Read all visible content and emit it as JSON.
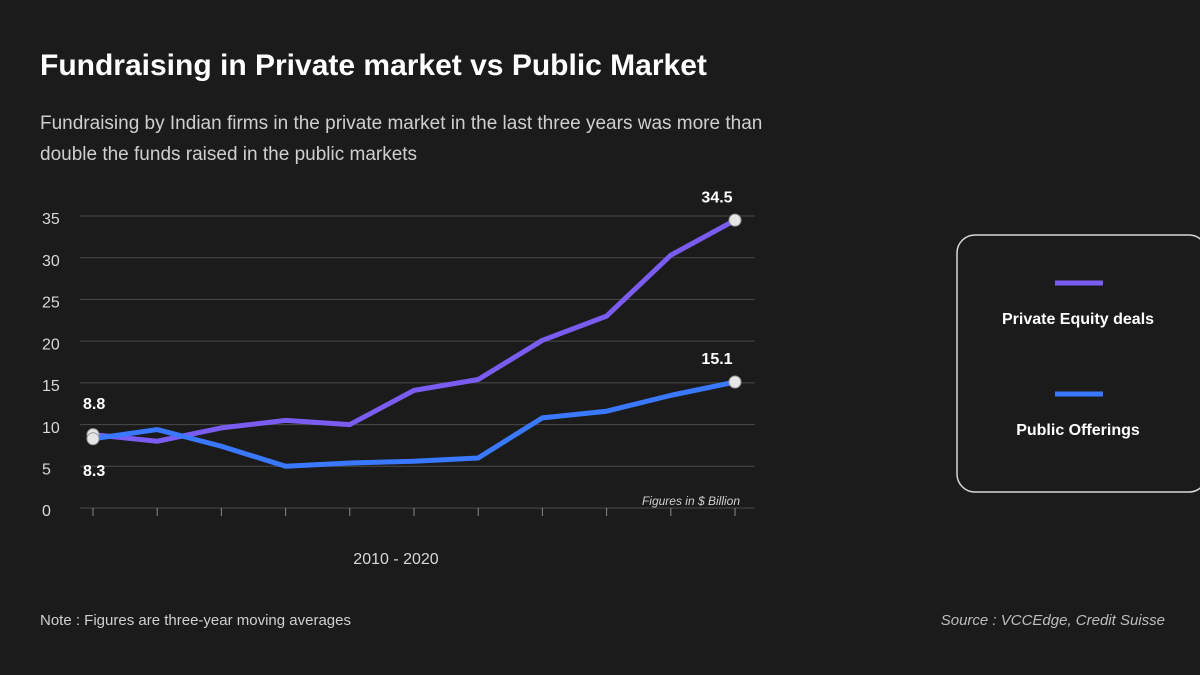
{
  "chart_data": {
    "type": "line",
    "title": "Fundraising in Private market vs Public Market",
    "subtitle": [
      "Fundraising by Indian firms in the private market in the last three years was more than",
      "double the funds raised in the public markets"
    ],
    "x_label": "2010 - 2020",
    "categories": [
      null,
      null,
      null,
      null,
      null,
      null,
      null,
      null,
      null,
      null,
      null
    ],
    "series": [
      {
        "name": "Private Equity deals",
        "color": "#7b5cf0",
        "values": [
          8.8,
          8.0,
          9.6,
          10.5,
          10.0,
          14.1,
          15.4,
          20.1,
          23.0,
          30.3,
          34.5
        ]
      },
      {
        "name": "Public Offerings",
        "color": "#3a78ff",
        "values": [
          8.3,
          9.4,
          7.4,
          5.0,
          5.4,
          5.6,
          6.0,
          10.8,
          11.6,
          13.5,
          15.1
        ]
      }
    ],
    "ylim": [
      0,
      35
    ],
    "yticks": [
      0,
      5,
      10,
      15,
      20,
      25,
      30,
      35
    ],
    "grid": true,
    "unit_note": "Figures in $  Billion",
    "note": "Note : Figures are three-year moving averages",
    "source": "Source : VCCEdge, Credit Suisse",
    "legend": "right"
  }
}
